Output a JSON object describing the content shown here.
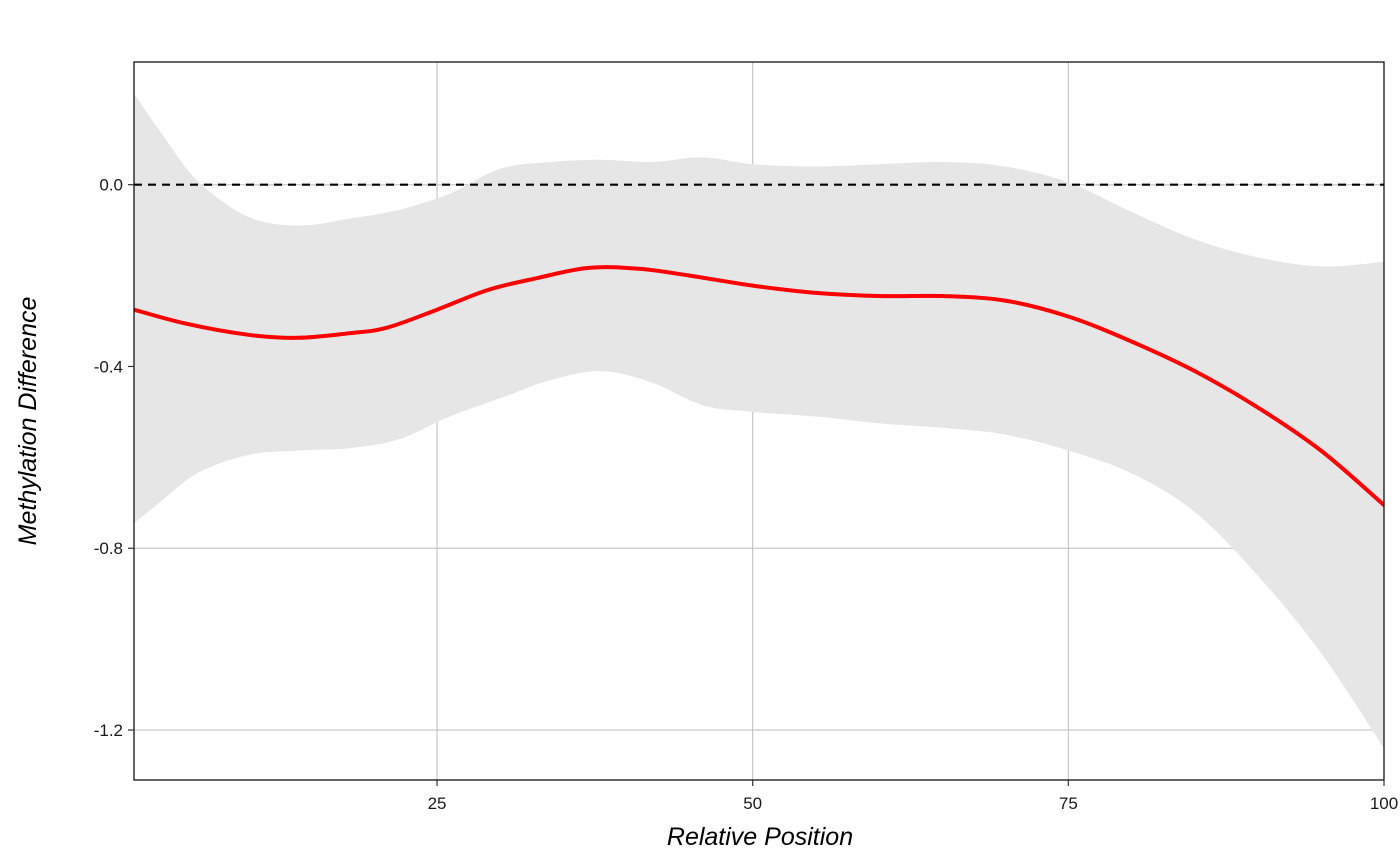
{
  "chart_data": {
    "type": "line",
    "title": "",
    "xlabel": "Relative Position",
    "ylabel": "Methylation Difference",
    "xlim": [
      1,
      100
    ],
    "ylim": [
      -1.31,
      0.27
    ],
    "x_ticks": [
      25,
      50,
      75,
      100
    ],
    "x_tick_labels": [
      "25",
      "50",
      "75",
      "100"
    ],
    "y_ticks": [
      0.0,
      -0.4,
      -0.8,
      -1.2
    ],
    "y_tick_labels": [
      "0.0",
      "-0.4",
      "-0.8",
      "-1.2"
    ],
    "grid": true,
    "reference_line": {
      "y": 0.0,
      "style": "dashed",
      "color": "#000000"
    },
    "series": [
      {
        "color": "#ff0000",
        "x": [
          1,
          5,
          10,
          14,
          18,
          21,
          25,
          29,
          33,
          37,
          41,
          45,
          50,
          55,
          60,
          65,
          70,
          75,
          80,
          85,
          90,
          95,
          100
        ],
        "y": [
          -0.275,
          -0.305,
          -0.33,
          -0.337,
          -0.327,
          -0.315,
          -0.275,
          -0.232,
          -0.205,
          -0.183,
          -0.185,
          -0.2,
          -0.222,
          -0.238,
          -0.245,
          -0.245,
          -0.255,
          -0.29,
          -0.345,
          -0.41,
          -0.49,
          -0.585,
          -0.705
        ]
      }
    ],
    "confidence_band": {
      "color": "#e6e6e6",
      "x": [
        1,
        3,
        6,
        10,
        14,
        18,
        22,
        26,
        30,
        34,
        38,
        42,
        46,
        50,
        55,
        60,
        65,
        70,
        75,
        80,
        85,
        90,
        95,
        100
      ],
      "upper": [
        0.2,
        0.12,
        0.01,
        -0.07,
        -0.09,
        -0.075,
        -0.055,
        -0.02,
        0.035,
        0.05,
        0.055,
        0.05,
        0.06,
        0.045,
        0.04,
        0.045,
        0.05,
        0.04,
        0.005,
        -0.06,
        -0.12,
        -0.16,
        -0.18,
        -0.17
      ],
      "lower": [
        -0.745,
        -0.7,
        -0.635,
        -0.595,
        -0.585,
        -0.58,
        -0.56,
        -0.51,
        -0.47,
        -0.43,
        -0.41,
        -0.435,
        -0.485,
        -0.5,
        -0.51,
        -0.525,
        -0.535,
        -0.55,
        -0.585,
        -0.635,
        -0.72,
        -0.86,
        -1.03,
        -1.24
      ]
    }
  }
}
